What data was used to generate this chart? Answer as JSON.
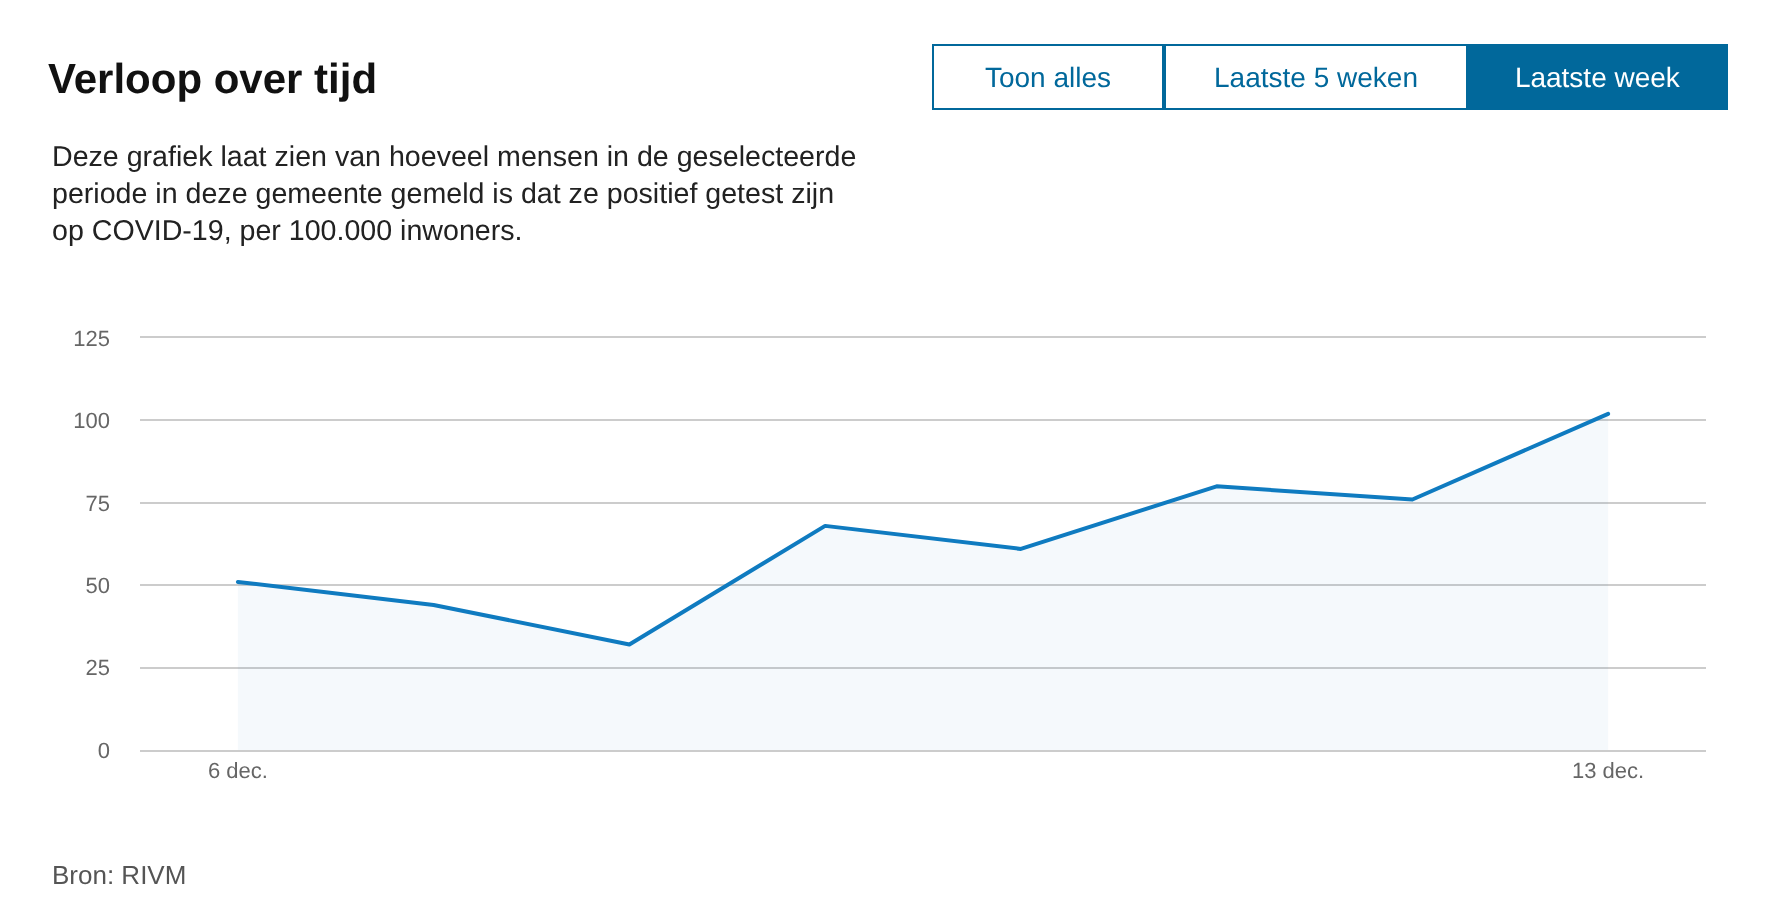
{
  "chart_data": {
    "type": "area",
    "title": "Verloop over tijd",
    "subtitle": "Deze grafiek laat zien van hoeveel mensen in de geselecteerde periode in deze gemeente gemeld is dat ze positief getest zijn op COVID-19, per 100.000 inwoners.",
    "categories": [
      "6 dec.",
      null,
      null,
      null,
      null,
      null,
      null,
      "13 dec."
    ],
    "series": [
      {
        "color": "#0f7bc0",
        "values": [
          51,
          44,
          32,
          68,
          61,
          80,
          76,
          102
        ]
      }
    ],
    "ylim": [
      0,
      125
    ],
    "yticks": [
      0,
      25,
      50,
      75,
      100,
      125
    ],
    "grid": "y",
    "annotations": [
      "Toon alles",
      "Laatste 5 weken",
      "Laatste week",
      "Bron: RIVM"
    ]
  }
}
